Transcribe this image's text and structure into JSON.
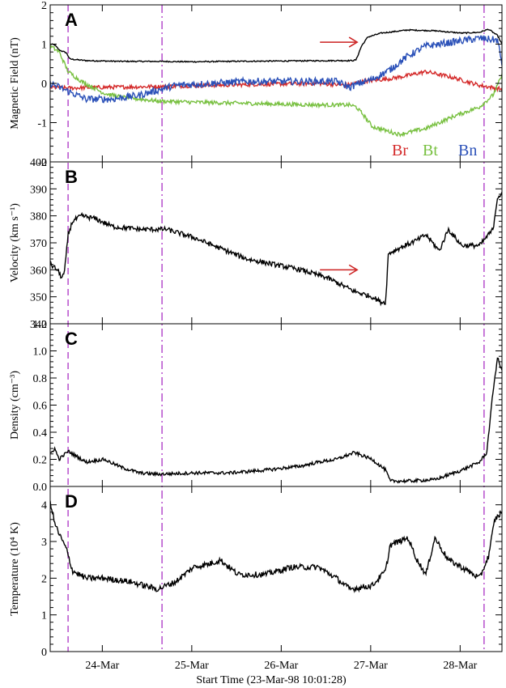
{
  "chart_data": {
    "type": "line",
    "x_title": "Start Time (23-Mar-98 10:01:28)",
    "x_range_days": [
      0.0,
      5.05
    ],
    "x_ticks": [
      {
        "label": "24-Mar",
        "day": 0.5825
      },
      {
        "label": "25-Mar",
        "day": 1.5825
      },
      {
        "label": "26-Mar",
        "day": 2.5825
      },
      {
        "label": "27-Mar",
        "day": 3.5825
      },
      {
        "label": "28-Mar",
        "day": 4.5825
      }
    ],
    "vlines": [
      {
        "day": 0.2,
        "style": "dashed",
        "color": "#b040c8"
      },
      {
        "day": 1.25,
        "style": "dashdot",
        "color": "#b040c8"
      },
      {
        "day": 4.85,
        "style": "dashdot",
        "color": "#b040c8"
      }
    ],
    "panels": [
      {
        "id": "A",
        "ylabel": "Magnetic Field (nT)",
        "ylim": [
          -2,
          2
        ],
        "yticks": [
          "-2",
          "-1",
          "0",
          "1",
          "2"
        ],
        "legend": [
          {
            "name": "Br",
            "color": "#d42a2a"
          },
          {
            "name": "Bt",
            "color": "#78c040"
          },
          {
            "name": "Bn",
            "color": "#2a50b8"
          }
        ],
        "arrow": {
          "day": 3.45,
          "value": 1.05,
          "color": "#cc2020"
        },
        "series": [
          {
            "name": "|B|",
            "color": "#000000",
            "noise": 0.015,
            "points": [
              [
                0,
                1.0
              ],
              [
                0.05,
                0.98
              ],
              [
                0.1,
                0.85
              ],
              [
                0.18,
                0.78
              ],
              [
                0.22,
                0.62
              ],
              [
                0.4,
                0.58
              ],
              [
                0.8,
                0.56
              ],
              [
                1.2,
                0.56
              ],
              [
                1.6,
                0.55
              ],
              [
                2.0,
                0.56
              ],
              [
                2.6,
                0.57
              ],
              [
                3.2,
                0.58
              ],
              [
                3.38,
                0.58
              ],
              [
                3.42,
                0.6
              ],
              [
                3.48,
                0.95
              ],
              [
                3.55,
                1.18
              ],
              [
                3.7,
                1.28
              ],
              [
                4.0,
                1.36
              ],
              [
                4.3,
                1.34
              ],
              [
                4.6,
                1.28
              ],
              [
                4.8,
                1.3
              ],
              [
                4.9,
                1.38
              ],
              [
                5.0,
                1.22
              ],
              [
                5.05,
                1.0
              ]
            ]
          },
          {
            "name": "Br",
            "color": "#d42a2a",
            "noise": 0.05,
            "points": [
              [
                0,
                -0.1
              ],
              [
                0.2,
                -0.12
              ],
              [
                0.6,
                -0.1
              ],
              [
                1.2,
                -0.08
              ],
              [
                1.8,
                -0.05
              ],
              [
                2.4,
                -0.02
              ],
              [
                3.0,
                0.0
              ],
              [
                3.3,
                -0.05
              ],
              [
                3.5,
                0.05
              ],
              [
                3.8,
                0.12
              ],
              [
                4.0,
                0.2
              ],
              [
                4.2,
                0.3
              ],
              [
                4.5,
                0.15
              ],
              [
                4.8,
                -0.05
              ],
              [
                5.05,
                -0.15
              ]
            ]
          },
          {
            "name": "Bt",
            "color": "#78c040",
            "noise": 0.05,
            "points": [
              [
                0,
                0.95
              ],
              [
                0.1,
                0.8
              ],
              [
                0.2,
                0.3
              ],
              [
                0.35,
                0.05
              ],
              [
                0.6,
                -0.25
              ],
              [
                0.8,
                -0.35
              ],
              [
                1.2,
                -0.45
              ],
              [
                1.6,
                -0.48
              ],
              [
                2.4,
                -0.52
              ],
              [
                3.0,
                -0.55
              ],
              [
                3.35,
                -0.55
              ],
              [
                3.42,
                -0.6
              ],
              [
                3.5,
                -0.8
              ],
              [
                3.6,
                -1.1
              ],
              [
                3.9,
                -1.3
              ],
              [
                4.2,
                -1.15
              ],
              [
                4.5,
                -0.85
              ],
              [
                4.8,
                -0.6
              ],
              [
                4.95,
                -0.3
              ],
              [
                5.05,
                0.2
              ]
            ]
          },
          {
            "name": "Bn",
            "color": "#2a50b8",
            "noise": 0.09,
            "points": [
              [
                0,
                0.0
              ],
              [
                0.2,
                -0.2
              ],
              [
                0.4,
                -0.4
              ],
              [
                0.7,
                -0.4
              ],
              [
                1.0,
                -0.3
              ],
              [
                1.4,
                -0.05
              ],
              [
                1.8,
                0.0
              ],
              [
                2.2,
                0.05
              ],
              [
                2.8,
                0.05
              ],
              [
                3.2,
                0.05
              ],
              [
                3.35,
                -0.1
              ],
              [
                3.45,
                0.0
              ],
              [
                3.6,
                0.1
              ],
              [
                3.8,
                0.35
              ],
              [
                4.0,
                0.7
              ],
              [
                4.2,
                0.95
              ],
              [
                4.5,
                1.05
              ],
              [
                4.8,
                1.15
              ],
              [
                5.0,
                1.1
              ],
              [
                5.05,
                0.5
              ]
            ]
          }
        ]
      },
      {
        "id": "B",
        "ylabel": "Velocity (km s⁻¹)",
        "ylim": [
          340,
          400
        ],
        "yticks": [
          "340",
          "350",
          "360",
          "370",
          "380",
          "390",
          "400"
        ],
        "arrow": {
          "day": 3.45,
          "value": 360,
          "color": "#cc2020"
        },
        "series": [
          {
            "name": "V",
            "color": "#000000",
            "noise": 0.9,
            "points": [
              [
                0,
                362
              ],
              [
                0.08,
                360
              ],
              [
                0.13,
                357
              ],
              [
                0.16,
                359
              ],
              [
                0.2,
                373
              ],
              [
                0.25,
                378
              ],
              [
                0.35,
                380
              ],
              [
                0.5,
                379
              ],
              [
                0.7,
                376
              ],
              [
                1.0,
                375
              ],
              [
                1.3,
                375
              ],
              [
                1.6,
                372
              ],
              [
                1.9,
                368
              ],
              [
                2.2,
                364
              ],
              [
                2.5,
                362
              ],
              [
                2.8,
                360
              ],
              [
                3.1,
                357
              ],
              [
                3.4,
                352
              ],
              [
                3.6,
                350
              ],
              [
                3.7,
                348
              ],
              [
                3.75,
                348
              ],
              [
                3.78,
                366
              ],
              [
                3.9,
                368
              ],
              [
                4.1,
                371
              ],
              [
                4.2,
                373
              ],
              [
                4.35,
                367
              ],
              [
                4.45,
                375
              ],
              [
                4.6,
                369
              ],
              [
                4.8,
                369
              ],
              [
                4.95,
                375
              ],
              [
                5.0,
                387
              ],
              [
                5.05,
                388
              ]
            ]
          }
        ]
      },
      {
        "id": "C",
        "ylabel": "Density (cm⁻³)",
        "ylim": [
          0,
          1.2
        ],
        "yticks": [
          "0.0",
          "0.2",
          "0.4",
          "0.6",
          "0.8",
          "1.0",
          "1.2"
        ],
        "series": [
          {
            "name": "N",
            "color": "#000000",
            "noise": 0.012,
            "points": [
              [
                0,
                0.24
              ],
              [
                0.05,
                0.28
              ],
              [
                0.1,
                0.2
              ],
              [
                0.2,
                0.26
              ],
              [
                0.4,
                0.18
              ],
              [
                0.6,
                0.2
              ],
              [
                0.8,
                0.14
              ],
              [
                1.0,
                0.1
              ],
              [
                1.2,
                0.09
              ],
              [
                1.6,
                0.1
              ],
              [
                2.0,
                0.1
              ],
              [
                2.4,
                0.12
              ],
              [
                2.8,
                0.15
              ],
              [
                3.0,
                0.18
              ],
              [
                3.2,
                0.2
              ],
              [
                3.4,
                0.25
              ],
              [
                3.6,
                0.2
              ],
              [
                3.75,
                0.12
              ],
              [
                3.8,
                0.04
              ],
              [
                4.0,
                0.04
              ],
              [
                4.3,
                0.05
              ],
              [
                4.6,
                0.12
              ],
              [
                4.8,
                0.18
              ],
              [
                4.88,
                0.25
              ],
              [
                4.95,
                0.7
              ],
              [
                5.0,
                0.95
              ],
              [
                5.05,
                0.85
              ]
            ]
          }
        ]
      },
      {
        "id": "D",
        "ylabel": "Temperature (10⁴ K)",
        "ylim": [
          0,
          4.5
        ],
        "yticks": [
          "0",
          "1",
          "2",
          "3",
          "4"
        ],
        "series": [
          {
            "name": "T",
            "color": "#000000",
            "noise": 0.08,
            "points": [
              [
                0,
                4.1
              ],
              [
                0.05,
                3.5
              ],
              [
                0.1,
                3.2
              ],
              [
                0.18,
                2.8
              ],
              [
                0.25,
                2.2
              ],
              [
                0.4,
                2.0
              ],
              [
                0.6,
                2.0
              ],
              [
                0.9,
                1.9
              ],
              [
                1.2,
                1.7
              ],
              [
                1.4,
                1.9
              ],
              [
                1.6,
                2.3
              ],
              [
                1.8,
                2.4
              ],
              [
                1.9,
                2.5
              ],
              [
                2.1,
                2.1
              ],
              [
                2.4,
                2.1
              ],
              [
                2.7,
                2.3
              ],
              [
                3.0,
                2.3
              ],
              [
                3.2,
                2.0
              ],
              [
                3.35,
                1.7
              ],
              [
                3.6,
                1.8
              ],
              [
                3.75,
                2.2
              ],
              [
                3.8,
                2.9
              ],
              [
                4.0,
                3.1
              ],
              [
                4.1,
                2.5
              ],
              [
                4.2,
                2.1
              ],
              [
                4.3,
                3.1
              ],
              [
                4.45,
                2.5
              ],
              [
                4.6,
                2.3
              ],
              [
                4.8,
                2.0
              ],
              [
                4.9,
                2.6
              ],
              [
                4.97,
                3.6
              ],
              [
                5.05,
                3.8
              ]
            ]
          }
        ]
      }
    ]
  }
}
